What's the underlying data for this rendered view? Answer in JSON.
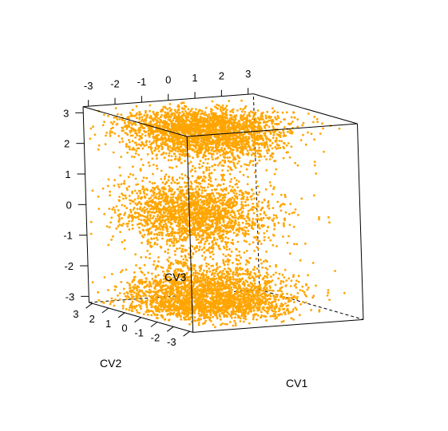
{
  "chart_data": {
    "type": "scatter",
    "title": "",
    "axes": {
      "x": {
        "label": "CV1",
        "ticks": [
          "-3",
          "-2",
          "-1",
          "0",
          "1",
          "2",
          "3"
        ],
        "range": [
          -3.2,
          3.2
        ]
      },
      "y": {
        "label": "CV2",
        "ticks": [
          "3",
          "2",
          "1",
          "0",
          "-1",
          "-2",
          "-3"
        ],
        "range": [
          -3.2,
          3.2
        ]
      },
      "z": {
        "label": "CV3",
        "ticks": [
          "3",
          "2",
          "1",
          "0",
          "-1",
          "-2",
          "-3"
        ],
        "range": [
          -3.2,
          3.2
        ]
      }
    },
    "point_color": "#FFA500",
    "box_color": "#000000",
    "clusters": [
      {
        "name": "top",
        "z_center": 2.7,
        "z_spread": 0.45,
        "x_center": -0.6,
        "x_spread": 1.3,
        "y_center": 0.0,
        "y_spread": 1.3,
        "count": 2600
      },
      {
        "name": "middle",
        "z_center": 0.0,
        "z_spread": 0.55,
        "x_center": -1.0,
        "x_spread": 1.2,
        "y_center": 0.2,
        "y_spread": 1.3,
        "count": 2100
      },
      {
        "name": "bottom",
        "z_center": -2.7,
        "z_spread": 0.5,
        "x_center": -0.6,
        "x_spread": 1.3,
        "y_center": 0.0,
        "y_spread": 1.3,
        "count": 2600
      }
    ]
  }
}
